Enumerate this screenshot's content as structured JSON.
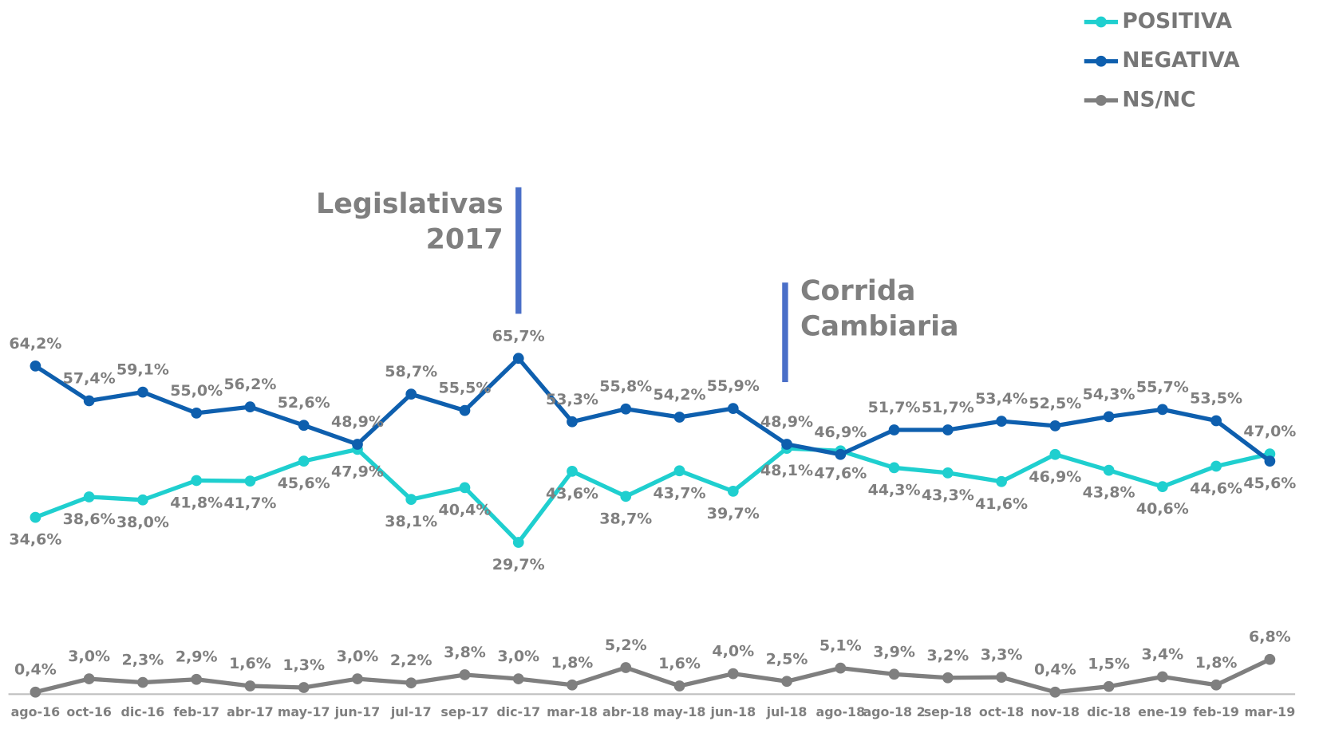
{
  "chart_data": {
    "type": "line",
    "categories": [
      "ago-16",
      "oct-16",
      "dic-16",
      "feb-17",
      "abr-17",
      "may-17",
      "jun-17",
      "jul-17",
      "sep-17",
      "dic-17",
      "mar-18",
      "abr-18",
      "may-18",
      "jun-18",
      "jul-18",
      "ago-18",
      "ago-18 2",
      "sep-18",
      "oct-18",
      "nov-18",
      "dic-18",
      "ene-19",
      "feb-19",
      "mar-19"
    ],
    "series": [
      {
        "name": "POSITIVA",
        "color": "#1fcfcf",
        "values": [
          34.6,
          38.6,
          38.0,
          41.8,
          41.7,
          45.6,
          47.9,
          38.1,
          40.4,
          29.7,
          43.6,
          38.7,
          43.7,
          39.7,
          48.1,
          47.6,
          44.3,
          43.3,
          41.6,
          46.9,
          43.8,
          40.6,
          44.6,
          47.0
        ],
        "value_labels": [
          "34,6%",
          "38,6%",
          "38,0%",
          "41,8%",
          "41,7%",
          "45,6%",
          "47,9%",
          "38,1%",
          "40,4%",
          "29,7%",
          "43,6%",
          "38,7%",
          "43,7%",
          "39,7%",
          "48,1%",
          "47,6%",
          "44,3%",
          "43,3%",
          "41,6%",
          "46,9%",
          "43,8%",
          "40,6%",
          "44,6%",
          "47,0%"
        ]
      },
      {
        "name": "NEGATIVA",
        "color": "#0e5fae",
        "values": [
          64.2,
          57.4,
          59.1,
          55.0,
          56.2,
          52.6,
          48.9,
          58.7,
          55.5,
          65.7,
          53.3,
          55.8,
          54.2,
          55.9,
          48.9,
          46.9,
          51.7,
          51.7,
          53.4,
          52.5,
          54.3,
          55.7,
          53.5,
          45.6
        ],
        "value_labels": [
          "64,2%",
          "57,4%",
          "59,1%",
          "55,0%",
          "56,2%",
          "52,6%",
          "48,9%",
          "58,7%",
          "55,5%",
          "65,7%",
          "53,3%",
          "55,8%",
          "54,2%",
          "55,9%",
          "48,9%",
          "46,9%",
          "51,7%",
          "51,7%",
          "53,4%",
          "52,5%",
          "54,3%",
          "55,7%",
          "53,5%",
          "45,6%"
        ]
      },
      {
        "name": "NS/NC",
        "color": "#7f7f7f",
        "values": [
          0.4,
          3.0,
          2.3,
          2.9,
          1.6,
          1.3,
          3.0,
          2.2,
          3.8,
          3.0,
          1.8,
          5.2,
          1.6,
          4.0,
          2.5,
          5.1,
          3.9,
          3.2,
          3.3,
          0.4,
          1.5,
          3.4,
          1.8,
          6.8
        ],
        "value_labels": [
          "0,4%",
          "3,0%",
          "2,3%",
          "2,9%",
          "1,6%",
          "1,3%",
          "3,0%",
          "2,2%",
          "3,8%",
          "3,0%",
          "1,8%",
          "5,2%",
          "1,6%",
          "4,0%",
          "2,5%",
          "5,1%",
          "3,9%",
          "3,2%",
          "3,3%",
          "0,4%",
          "1,5%",
          "3,4%",
          "1,8%",
          "6,8%"
        ]
      }
    ],
    "annotations": [
      {
        "lines": [
          "Legislativas",
          "2017"
        ],
        "category": 9
      },
      {
        "lines": [
          "Corrida",
          "Cambiaria"
        ],
        "category": 14
      }
    ],
    "legend": "top-right"
  }
}
